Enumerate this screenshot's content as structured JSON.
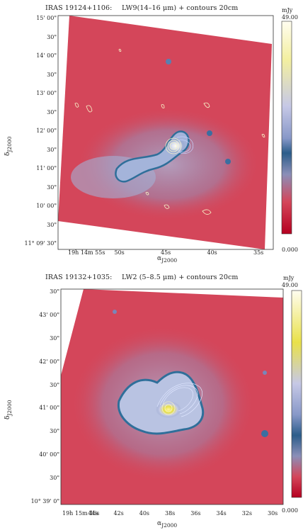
{
  "panels": [
    {
      "title_source": "IRAS 19124+1106:",
      "title_band": "LW9(14–16 μm) + contours 20cm",
      "colorbar": {
        "unit": "mJy",
        "max": "49.00",
        "min": "0.000"
      },
      "y_axis_label": "δ",
      "y_axis_sub": "J2000",
      "x_axis_label": "α",
      "x_axis_sub": "J2000",
      "y_ticks": [
        "15' 00\"",
        "30\"",
        "14' 00\"",
        "30\"",
        "13' 00\"",
        "30\"",
        "12' 00\"",
        "30\"",
        "11' 00\"",
        "30\"",
        "10' 00\"",
        "30\"",
        "11° 09' 30\""
      ],
      "x_ticks": [
        "19h 14m 55s",
        "50s",
        "45s",
        "40s",
        "35s"
      ]
    },
    {
      "title_source": "IRAS 19132+1035:",
      "title_band": "LW2 (5–8.5 μm) + contours 20cm",
      "colorbar": {
        "unit": "mJy",
        "max": "49.00",
        "min": "0.000"
      },
      "y_axis_label": "δ",
      "y_axis_sub": "J2000",
      "x_axis_label": "α",
      "x_axis_sub": "J2000",
      "y_ticks": [
        "30\"",
        "43' 00\"",
        "30\"",
        "42' 00\"",
        "30\"",
        "41' 00\"",
        "30\"",
        "40' 00\"",
        "30\"",
        "10° 39' 0\""
      ],
      "x_ticks": [
        "19h 15m 46s",
        "44s",
        "42s",
        "40s",
        "38s",
        "36s",
        "34s",
        "32s",
        "30s"
      ]
    }
  ],
  "colors": {
    "map_background": "#d4465a",
    "extended_emission": "#8fa2c8",
    "filament_edge": "#2f6f9a",
    "core": "#f3f1e6",
    "contour": "#f7f4c8",
    "radio_contour_blue": "#c8d4ff",
    "colorbar_top": "#fffde5",
    "colorbar_mid": "#2c5d8a",
    "colorbar_bottom": "#b50020"
  }
}
